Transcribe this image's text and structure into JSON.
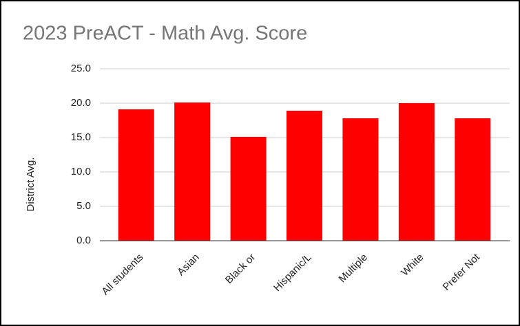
{
  "chart_data": {
    "type": "bar",
    "title": "2023 PreACT - Math Avg. Score",
    "y_axis_label": "District Avg.",
    "categories": [
      "All students",
      "Asian",
      "Black or",
      "Hispanic/L",
      "Multiple",
      "White",
      "Prefer Not"
    ],
    "values": [
      19.1,
      20.1,
      15.1,
      18.9,
      17.8,
      20.0,
      17.8
    ],
    "color": "#ff0000",
    "ylim": [
      0,
      25
    ],
    "yticks": [
      {
        "value": 0,
        "label": "0.0"
      },
      {
        "value": 5,
        "label": "5.0"
      },
      {
        "value": 10,
        "label": "10.0"
      },
      {
        "value": 15,
        "label": "15.0"
      },
      {
        "value": 20,
        "label": "20.0"
      },
      {
        "value": 25,
        "label": "25.0"
      }
    ],
    "grid": true
  }
}
